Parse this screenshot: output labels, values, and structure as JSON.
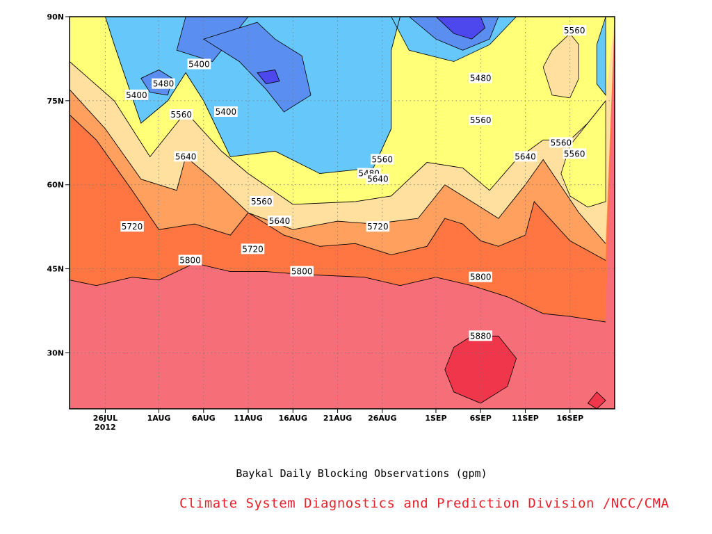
{
  "chart_data": {
    "type": "heatmap",
    "title": "Baykal Daily Blocking Observations (gpm)",
    "credit": "Climate System Diagnostics and Prediction Division /NCC/CMA",
    "x_ticks": [
      {
        "date": "2012-07-26",
        "label": "26JUL",
        "sublabel": "2012"
      },
      {
        "date": "2012-08-01",
        "label": "1AUG"
      },
      {
        "date": "2012-08-06",
        "label": "6AUG"
      },
      {
        "date": "2012-08-11",
        "label": "11AUG"
      },
      {
        "date": "2012-08-16",
        "label": "16AUG"
      },
      {
        "date": "2012-08-21",
        "label": "21AUG"
      },
      {
        "date": "2012-08-26",
        "label": "26AUG"
      },
      {
        "date": "2012-09-01",
        "label": "1SEP"
      },
      {
        "date": "2012-09-06",
        "label": "6SEP"
      },
      {
        "date": "2012-09-11",
        "label": "11SEP"
      },
      {
        "date": "2012-09-16",
        "label": "16SEP"
      }
    ],
    "y_ticks": [
      {
        "value": 30,
        "label": "30N"
      },
      {
        "value": 45,
        "label": "45N"
      },
      {
        "value": 60,
        "label": "60N"
      },
      {
        "value": 75,
        "label": "75N"
      },
      {
        "value": 90,
        "label": "90N"
      }
    ],
    "xlim": [
      "2012-07-22",
      "2012-09-21"
    ],
    "ylim": [
      20,
      90
    ],
    "grid": true,
    "levels": [
      {
        "value": 5400,
        "color": "#5a8ef0"
      },
      {
        "value": 5480,
        "color": "#66c8fa"
      },
      {
        "value": 5560,
        "color": "#ffff78"
      },
      {
        "value": 5640,
        "color": "#ffe09e"
      },
      {
        "value": 5720,
        "color": "#ffa05e"
      },
      {
        "value": 5800,
        "color": "#ff7642"
      },
      {
        "value": 5880,
        "color": "#f56e78"
      }
    ],
    "highest_color": "#f0364a",
    "lowest_color": "#4c48ee",
    "contours": [
      {
        "value": 5800,
        "lat_by_day": [
          [
            0,
            43
          ],
          [
            3,
            42
          ],
          [
            7,
            43.5
          ],
          [
            10,
            43
          ],
          [
            14,
            46
          ],
          [
            18,
            44.5
          ],
          [
            22,
            44.5
          ],
          [
            26,
            44
          ],
          [
            33,
            43.5
          ],
          [
            37,
            42
          ],
          [
            41,
            43.5
          ],
          [
            45,
            42
          ],
          [
            49,
            40
          ],
          [
            53,
            37
          ],
          [
            56,
            36.5
          ],
          [
            60,
            35.5
          ]
        ]
      },
      {
        "value": 5720,
        "lat_by_day": [
          [
            0,
            72.5
          ],
          [
            3,
            68
          ],
          [
            7,
            59
          ],
          [
            10,
            52
          ],
          [
            14,
            53
          ],
          [
            18,
            51
          ],
          [
            20,
            55
          ],
          [
            24,
            51
          ],
          [
            28,
            49
          ],
          [
            32,
            49.5
          ],
          [
            36,
            47.5
          ],
          [
            40,
            49
          ],
          [
            42,
            54
          ],
          [
            44,
            53
          ],
          [
            46,
            50
          ],
          [
            48,
            49
          ],
          [
            51,
            51
          ],
          [
            52,
            57
          ],
          [
            56,
            50
          ],
          [
            60,
            46.5
          ]
        ]
      },
      {
        "value": 5640,
        "lat_by_day": [
          [
            0,
            77
          ],
          [
            4,
            70
          ],
          [
            8,
            61
          ],
          [
            12,
            59
          ],
          [
            13,
            65
          ],
          [
            16,
            61
          ],
          [
            20,
            55
          ],
          [
            25,
            52
          ],
          [
            30,
            53.5
          ],
          [
            34,
            53
          ],
          [
            39,
            54
          ],
          [
            42,
            60
          ],
          [
            46,
            56
          ],
          [
            48,
            54
          ],
          [
            51,
            60
          ],
          [
            53,
            64.5
          ],
          [
            57,
            55
          ],
          [
            60,
            49.5
          ]
        ]
      },
      {
        "value": 5560,
        "lat_by_day": [
          [
            0,
            82
          ],
          [
            5,
            75
          ],
          [
            9,
            65
          ],
          [
            13,
            73
          ],
          [
            17,
            66
          ],
          [
            20,
            62
          ],
          [
            25,
            56.5
          ],
          [
            32,
            57
          ],
          [
            36,
            58
          ],
          [
            40,
            64
          ],
          [
            44,
            63
          ],
          [
            47,
            59
          ],
          [
            50,
            64.5
          ],
          [
            53,
            68
          ],
          [
            56,
            68
          ],
          [
            58,
            71
          ],
          [
            60,
            75
          ]
        ]
      },
      {
        "value": 5480,
        "lat_by_day": [
          [
            4,
            90
          ],
          [
            5,
            85
          ],
          [
            8,
            71
          ],
          [
            11,
            75
          ],
          [
            13,
            80
          ],
          [
            15,
            75
          ],
          [
            18,
            65
          ],
          [
            23,
            66
          ],
          [
            28,
            62
          ],
          [
            34,
            63
          ],
          [
            36,
            70
          ],
          [
            36,
            84
          ],
          [
            37,
            90
          ]
        ]
      }
    ]
  }
}
